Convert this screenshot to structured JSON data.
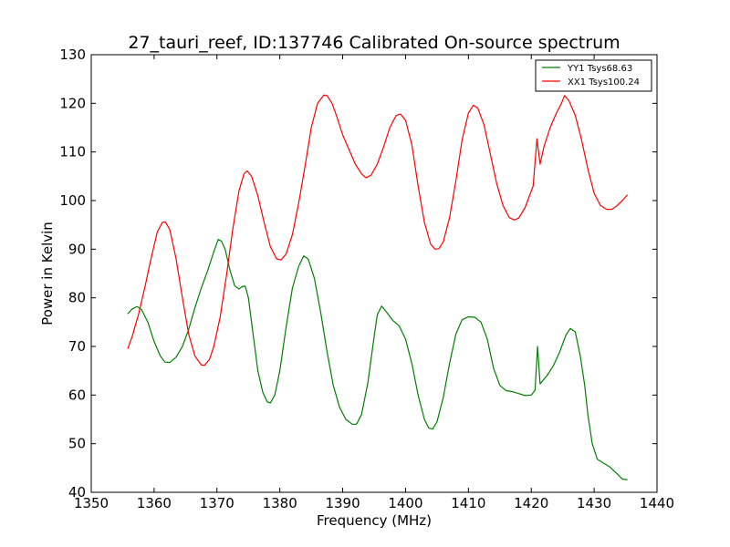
{
  "chart_data": {
    "type": "line",
    "title": "27_tauri_reef, ID:137746 Calibrated On-source spectrum",
    "xlabel": "Frequency (MHz)",
    "ylabel": "Power in Kelvin",
    "xlim": [
      1350,
      1440
    ],
    "ylim": [
      40,
      130
    ],
    "xticks": [
      1350,
      1360,
      1370,
      1380,
      1390,
      1400,
      1410,
      1420,
      1430,
      1440
    ],
    "yticks": [
      40,
      50,
      60,
      70,
      80,
      90,
      100,
      110,
      120,
      130
    ],
    "grid": false,
    "legend": "top-right",
    "series": [
      {
        "name": "YY1 Tsys68.63",
        "color": "#008000",
        "points": [
          [
            1355.8,
            76.7
          ],
          [
            1356.5,
            77.7
          ],
          [
            1357.3,
            78.2
          ],
          [
            1358.0,
            77.6
          ],
          [
            1359.0,
            75.0
          ],
          [
            1360.0,
            71.0
          ],
          [
            1361.0,
            68.0
          ],
          [
            1361.7,
            66.8
          ],
          [
            1362.5,
            66.7
          ],
          [
            1363.5,
            67.8
          ],
          [
            1364.5,
            70.0
          ],
          [
            1365.5,
            73.5
          ],
          [
            1366.5,
            78.0
          ],
          [
            1367.5,
            82.0
          ],
          [
            1368.5,
            85.5
          ],
          [
            1369.5,
            89.5
          ],
          [
            1370.2,
            92.0
          ],
          [
            1370.7,
            91.7
          ],
          [
            1371.3,
            90.0
          ],
          [
            1372.0,
            86.0
          ],
          [
            1372.8,
            82.5
          ],
          [
            1373.5,
            81.8
          ],
          [
            1374.0,
            82.3
          ],
          [
            1374.5,
            82.4
          ],
          [
            1375.0,
            80.0
          ],
          [
            1375.7,
            73.0
          ],
          [
            1376.5,
            65.0
          ],
          [
            1377.3,
            60.5
          ],
          [
            1378.0,
            58.6
          ],
          [
            1378.5,
            58.4
          ],
          [
            1379.2,
            60.0
          ],
          [
            1380.0,
            65.0
          ],
          [
            1381.0,
            74.0
          ],
          [
            1382.0,
            82.0
          ],
          [
            1383.0,
            86.5
          ],
          [
            1383.8,
            88.6
          ],
          [
            1384.5,
            88.0
          ],
          [
            1385.5,
            84.0
          ],
          [
            1386.5,
            77.0
          ],
          [
            1387.5,
            69.0
          ],
          [
            1388.5,
            62.0
          ],
          [
            1389.5,
            57.5
          ],
          [
            1390.5,
            55.0
          ],
          [
            1391.5,
            54.0
          ],
          [
            1392.2,
            54.0
          ],
          [
            1393.0,
            56.0
          ],
          [
            1394.0,
            62.5
          ],
          [
            1395.0,
            72.0
          ],
          [
            1395.5,
            76.5
          ],
          [
            1396.2,
            78.3
          ],
          [
            1397.0,
            77.0
          ],
          [
            1398.0,
            75.3
          ],
          [
            1399.0,
            74.2
          ],
          [
            1400.0,
            71.5
          ],
          [
            1401.0,
            66.5
          ],
          [
            1402.0,
            60.0
          ],
          [
            1403.0,
            55.0
          ],
          [
            1403.7,
            53.2
          ],
          [
            1404.3,
            53.0
          ],
          [
            1405.0,
            54.5
          ],
          [
            1406.0,
            59.5
          ],
          [
            1407.0,
            66.5
          ],
          [
            1408.0,
            72.5
          ],
          [
            1409.0,
            75.5
          ],
          [
            1410.0,
            76.1
          ],
          [
            1411.0,
            76.0
          ],
          [
            1412.0,
            75.0
          ],
          [
            1413.0,
            71.5
          ],
          [
            1414.0,
            65.5
          ],
          [
            1415.0,
            62.0
          ],
          [
            1416.0,
            60.9
          ],
          [
            1417.0,
            60.7
          ],
          [
            1418.0,
            60.3
          ],
          [
            1419.0,
            59.9
          ],
          [
            1420.0,
            60.0
          ],
          [
            1420.6,
            61.0
          ],
          [
            1421.0,
            70.0
          ],
          [
            1421.4,
            62.3
          ],
          [
            1422.5,
            64.0
          ],
          [
            1423.5,
            66.0
          ],
          [
            1424.5,
            68.8
          ],
          [
            1425.5,
            72.3
          ],
          [
            1426.2,
            73.7
          ],
          [
            1427.0,
            73.0
          ],
          [
            1427.8,
            68.0
          ],
          [
            1428.5,
            62.0
          ],
          [
            1429.0,
            56.0
          ],
          [
            1429.7,
            50.0
          ],
          [
            1430.5,
            46.8
          ],
          [
            1431.5,
            46.0
          ],
          [
            1432.5,
            45.2
          ],
          [
            1433.5,
            44.0
          ],
          [
            1434.5,
            42.7
          ],
          [
            1435.3,
            42.6
          ]
        ]
      },
      {
        "name": "XX1 Tsys100.24",
        "color": "#ff0000",
        "points": [
          [
            1355.8,
            69.5
          ],
          [
            1356.5,
            72.0
          ],
          [
            1357.5,
            76.5
          ],
          [
            1358.5,
            82.0
          ],
          [
            1359.5,
            88.0
          ],
          [
            1360.5,
            93.5
          ],
          [
            1361.3,
            95.5
          ],
          [
            1361.8,
            95.6
          ],
          [
            1362.5,
            94.0
          ],
          [
            1363.5,
            88.0
          ],
          [
            1364.5,
            80.0
          ],
          [
            1365.5,
            72.5
          ],
          [
            1366.5,
            68.0
          ],
          [
            1367.5,
            66.2
          ],
          [
            1368.0,
            66.1
          ],
          [
            1368.8,
            67.3
          ],
          [
            1369.5,
            70.0
          ],
          [
            1370.5,
            76.0
          ],
          [
            1371.5,
            84.5
          ],
          [
            1372.5,
            94.0
          ],
          [
            1373.5,
            102.0
          ],
          [
            1374.3,
            105.5
          ],
          [
            1374.8,
            106.1
          ],
          [
            1375.5,
            105.0
          ],
          [
            1376.5,
            101.0
          ],
          [
            1377.5,
            95.5
          ],
          [
            1378.5,
            90.5
          ],
          [
            1379.5,
            88.0
          ],
          [
            1380.2,
            87.8
          ],
          [
            1381.0,
            89.0
          ],
          [
            1382.0,
            93.0
          ],
          [
            1383.0,
            99.5
          ],
          [
            1384.0,
            107.0
          ],
          [
            1385.0,
            115.0
          ],
          [
            1386.0,
            120.0
          ],
          [
            1387.0,
            121.7
          ],
          [
            1387.5,
            121.6
          ],
          [
            1388.3,
            120.0
          ],
          [
            1389.0,
            117.5
          ],
          [
            1390.0,
            113.5
          ],
          [
            1391.0,
            110.5
          ],
          [
            1392.0,
            107.5
          ],
          [
            1393.0,
            105.5
          ],
          [
            1393.7,
            104.7
          ],
          [
            1394.5,
            105.2
          ],
          [
            1395.5,
            107.5
          ],
          [
            1396.5,
            111.0
          ],
          [
            1397.5,
            115.0
          ],
          [
            1398.5,
            117.5
          ],
          [
            1399.2,
            117.8
          ],
          [
            1400.0,
            116.5
          ],
          [
            1401.0,
            111.5
          ],
          [
            1402.0,
            103.0
          ],
          [
            1403.0,
            95.5
          ],
          [
            1404.0,
            91.0
          ],
          [
            1404.7,
            90.0
          ],
          [
            1405.3,
            90.1
          ],
          [
            1406.0,
            91.5
          ],
          [
            1407.0,
            96.5
          ],
          [
            1408.0,
            104.0
          ],
          [
            1409.0,
            112.5
          ],
          [
            1410.0,
            118.0
          ],
          [
            1410.8,
            119.6
          ],
          [
            1411.5,
            119.0
          ],
          [
            1412.5,
            115.5
          ],
          [
            1413.5,
            109.5
          ],
          [
            1414.5,
            103.5
          ],
          [
            1415.5,
            99.0
          ],
          [
            1416.5,
            96.5
          ],
          [
            1417.3,
            96.0
          ],
          [
            1418.0,
            96.4
          ],
          [
            1419.0,
            98.5
          ],
          [
            1420.3,
            103.0
          ],
          [
            1420.9,
            112.7
          ],
          [
            1421.4,
            107.5
          ],
          [
            1422.0,
            111.0
          ],
          [
            1423.0,
            115.0
          ],
          [
            1424.0,
            118.0
          ],
          [
            1424.8,
            120.0
          ],
          [
            1425.3,
            121.6
          ],
          [
            1426.0,
            120.5
          ],
          [
            1427.0,
            117.5
          ],
          [
            1428.0,
            112.5
          ],
          [
            1429.0,
            106.5
          ],
          [
            1430.0,
            101.5
          ],
          [
            1431.0,
            99.0
          ],
          [
            1432.0,
            98.2
          ],
          [
            1432.8,
            98.2
          ],
          [
            1433.5,
            98.8
          ],
          [
            1434.5,
            100.0
          ],
          [
            1435.3,
            101.2
          ]
        ]
      }
    ]
  }
}
